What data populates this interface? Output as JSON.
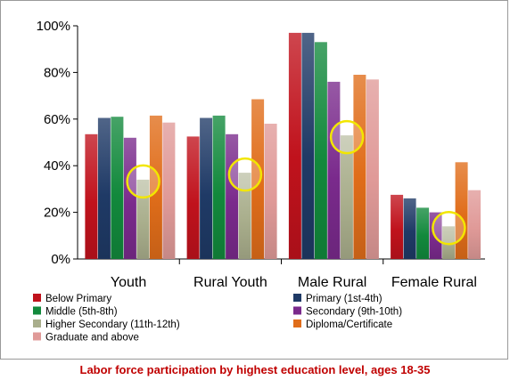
{
  "caption": "Labor force participation by highest education level, ages 18-35",
  "chart_data": {
    "type": "bar",
    "title": "Labor force participation by highest education level, ages 18-35",
    "categories": [
      "Youth",
      "Rural Youth",
      "Male Rural",
      "Female Rural"
    ],
    "series": [
      {
        "name": "Below Primary",
        "values": [
          53.5,
          52.5,
          97,
          27.5
        ],
        "color": "#c0121c"
      },
      {
        "name": "Primary (1st-4th)",
        "values": [
          60.5,
          60.5,
          97,
          26
        ],
        "color": "#1f3a66"
      },
      {
        "name": "Middle (5th-8th)",
        "values": [
          61,
          61.5,
          93,
          22
        ],
        "color": "#12893c"
      },
      {
        "name": "Secondary (9th-10th)",
        "values": [
          52,
          53.5,
          76,
          20
        ],
        "color": "#7a2a8c"
      },
      {
        "name": "Higher Secondary (11th-12th)",
        "values": [
          34,
          37,
          53,
          14
        ],
        "color": "#a9ae8c"
      },
      {
        "name": "Diploma/Certificate",
        "values": [
          61.5,
          68.5,
          79,
          41.5
        ],
        "color": "#e06d1a"
      },
      {
        "name": "Graduate and above",
        "values": [
          58.5,
          58,
          77,
          29.5
        ],
        "color": "#e09a98"
      }
    ],
    "yticks": [
      "0%",
      "20%",
      "40%",
      "60%",
      "80%",
      "100%"
    ],
    "ylim": [
      0,
      100
    ],
    "highlighted_series": "Higher Secondary (11th-12th)",
    "highlight_color": "#f2e600",
    "legend_position": "bottom",
    "grid": false
  }
}
